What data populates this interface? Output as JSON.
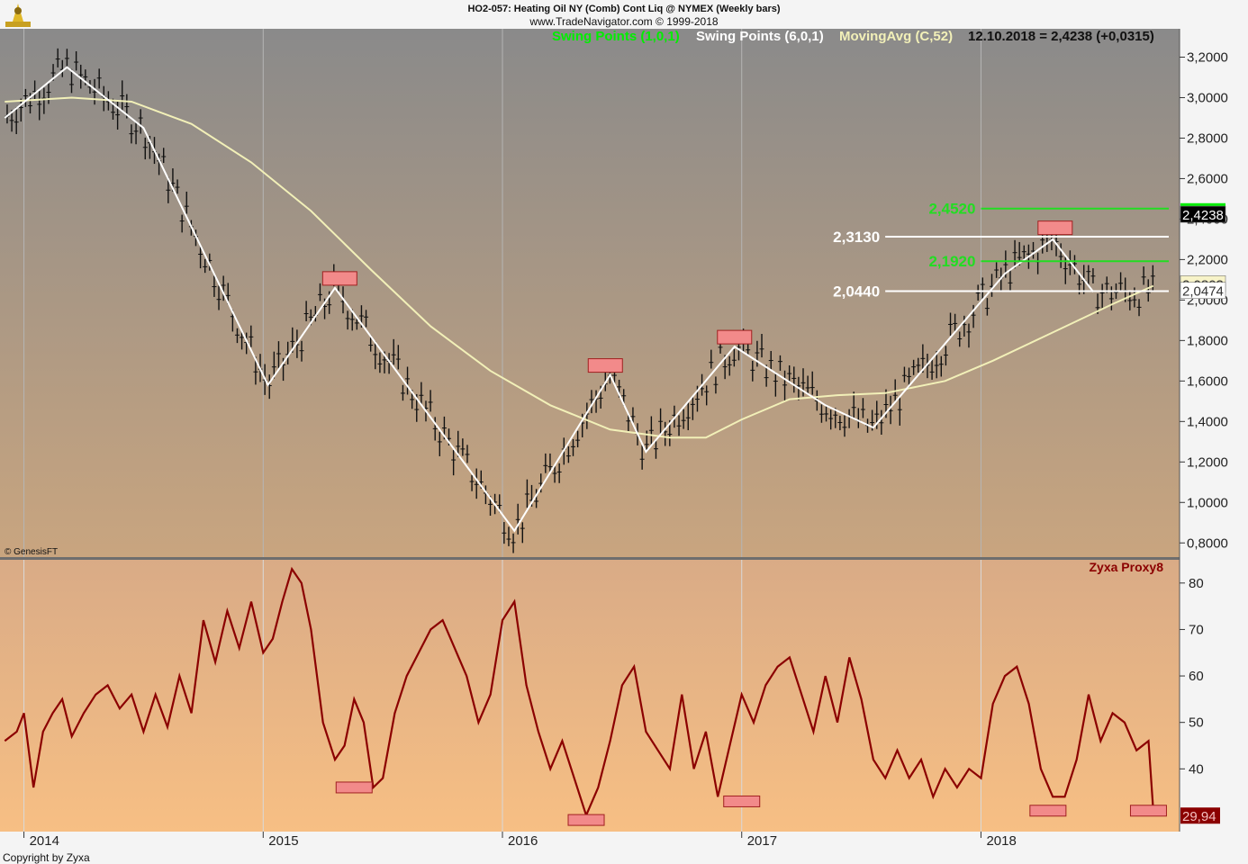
{
  "header": {
    "line1": "HO2-057:  Heating Oil NY (Comb) Cont Liq @ NYMEX  (Weekly bars)",
    "line2": "www.TradeNavigator.com © 1999-2018"
  },
  "legend": {
    "swing_small": "Swing Points (1,0,1)",
    "swing_large": "Swing Points (6,0,1)",
    "moving_avg": "MovingAvg (C,52)",
    "last_value": "12.10.2018 = 2,4238 (+0,0315)"
  },
  "watermark": "© GenesisFT",
  "footer": "Copyright by Zyxa",
  "colors": {
    "price_panel_top": "#8a8a8a",
    "price_panel_bottom": "#c9a57f",
    "indicator_panel_top": "#d9ab86",
    "indicator_panel_bottom": "#f7bf84",
    "small_swing": "#00ee00",
    "large_swing": "#ffffff",
    "moving_avg": "#f2f0b8",
    "indicator_line": "#8b0000",
    "marker_fill": "#f28a8a",
    "level_green": "#22dd22"
  },
  "chart_data": [
    {
      "type": "line",
      "panel": "price",
      "x_tick_labels": [
        "2014",
        "2015",
        "2016",
        "2017",
        "2018"
      ],
      "x_tick_values": [
        2014.0,
        2015.0,
        2016.0,
        2017.0,
        2018.0
      ],
      "y_tick_labels": [
        "3,2000",
        "3,0000",
        "2,8000",
        "2,6000",
        "2,4000",
        "2,2000",
        "2,0000",
        "1,8000",
        "1,6000",
        "1,4000",
        "1,2000",
        "1,0000",
        "0,8000"
      ],
      "y_tick_values": [
        3.2,
        3.0,
        2.8,
        2.6,
        2.4,
        2.2,
        2.0,
        1.8,
        1.6,
        1.4,
        1.2,
        1.0,
        0.8
      ],
      "xlim": [
        2013.9,
        2018.83
      ],
      "ylim": [
        0.73,
        3.34
      ],
      "series": [
        {
          "name": "Swing Points (6,0,1)",
          "x": [
            2013.92,
            2014.18,
            2014.5,
            2015.02,
            2015.3,
            2016.05,
            2016.45,
            2016.6,
            2016.97,
            2017.35,
            2017.55,
            2018.1,
            2018.3,
            2018.47
          ],
          "y": [
            2.9,
            3.15,
            2.85,
            1.58,
            2.06,
            0.86,
            1.63,
            1.25,
            1.77,
            1.48,
            1.37,
            2.13,
            2.3,
            2.04
          ]
        },
        {
          "name": "MovingAvg (C,52)",
          "x": [
            2013.92,
            2014.2,
            2014.45,
            2014.7,
            2014.95,
            2015.2,
            2015.45,
            2015.7,
            2015.95,
            2016.2,
            2016.45,
            2016.7,
            2016.85,
            2017.0,
            2017.2,
            2017.4,
            2017.6,
            2017.85,
            2018.05,
            2018.3,
            2018.55,
            2018.72
          ],
          "y": [
            2.98,
            3.0,
            2.98,
            2.87,
            2.68,
            2.44,
            2.15,
            1.87,
            1.65,
            1.48,
            1.36,
            1.32,
            1.32,
            1.41,
            1.51,
            1.53,
            1.54,
            1.6,
            1.7,
            1.84,
            1.98,
            2.07
          ]
        }
      ],
      "swing_markers": [
        {
          "x": 2015.32,
          "y": 2.06
        },
        {
          "x": 2016.43,
          "y": 1.63
        },
        {
          "x": 2016.97,
          "y": 1.77
        },
        {
          "x": 2018.31,
          "y": 2.31
        }
      ],
      "levels": [
        {
          "label": "2,4520",
          "value": 2.452,
          "style": "green",
          "from": 2018.0
        },
        {
          "label": "2,3130",
          "value": 2.313,
          "style": "white",
          "from": 2017.6
        },
        {
          "label": "2,1920",
          "value": 2.192,
          "style": "green",
          "from": 2018.0
        },
        {
          "label": "2,0440",
          "value": 2.044,
          "style": "white",
          "from": 2017.6
        }
      ],
      "value_flags": [
        {
          "label": "2,4238",
          "value": 2.4238,
          "style": "dark"
        },
        {
          "label": "2,0803",
          "value": 2.0803,
          "style": "cream"
        },
        {
          "label": "2,0474",
          "value": 2.0474,
          "style": "white"
        }
      ],
      "highlight_bar": {
        "value": 2.465
      }
    },
    {
      "type": "line",
      "panel": "indicator",
      "title": "Zyxa Proxy8",
      "y_tick_labels": [
        "80",
        "70",
        "60",
        "50",
        "40"
      ],
      "y_tick_values": [
        80,
        70,
        60,
        50,
        40
      ],
      "ylim": [
        26.5,
        85
      ],
      "series": [
        {
          "name": "Zyxa Proxy8",
          "x": [
            2013.92,
            2013.97,
            2014.0,
            2014.04,
            2014.08,
            2014.12,
            2014.16,
            2014.2,
            2014.25,
            2014.3,
            2014.35,
            2014.4,
            2014.45,
            2014.5,
            2014.55,
            2014.6,
            2014.65,
            2014.7,
            2014.75,
            2014.8,
            2014.85,
            2014.9,
            2014.95,
            2015.0,
            2015.04,
            2015.08,
            2015.12,
            2015.16,
            2015.2,
            2015.25,
            2015.3,
            2015.34,
            2015.38,
            2015.42,
            2015.46,
            2015.5,
            2015.55,
            2015.6,
            2015.65,
            2015.7,
            2015.75,
            2015.8,
            2015.85,
            2015.9,
            2015.95,
            2016.0,
            2016.05,
            2016.1,
            2016.15,
            2016.2,
            2016.25,
            2016.3,
            2016.35,
            2016.4,
            2016.45,
            2016.5,
            2016.55,
            2016.6,
            2016.65,
            2016.7,
            2016.75,
            2016.8,
            2016.85,
            2016.9,
            2016.95,
            2017.0,
            2017.05,
            2017.1,
            2017.15,
            2017.2,
            2017.25,
            2017.3,
            2017.35,
            2017.4,
            2017.45,
            2017.5,
            2017.55,
            2017.6,
            2017.65,
            2017.7,
            2017.75,
            2017.8,
            2017.85,
            2017.9,
            2017.95,
            2018.0,
            2018.05,
            2018.1,
            2018.15,
            2018.2,
            2018.25,
            2018.3,
            2018.35,
            2018.4,
            2018.45,
            2018.5,
            2018.55,
            2018.6,
            2018.65,
            2018.7,
            2018.72
          ],
          "y": [
            46,
            48,
            52,
            36,
            48,
            52,
            55,
            47,
            52,
            56,
            58,
            53,
            56,
            48,
            56,
            49,
            60,
            52,
            72,
            63,
            74,
            66,
            76,
            65,
            68,
            76,
            83,
            80,
            70,
            50,
            42,
            45,
            55,
            50,
            36,
            38,
            52,
            60,
            65,
            70,
            72,
            66,
            60,
            50,
            56,
            72,
            76,
            58,
            48,
            40,
            46,
            38,
            30,
            36,
            46,
            58,
            62,
            48,
            44,
            40,
            56,
            40,
            48,
            34,
            45,
            56,
            50,
            58,
            62,
            64,
            56,
            48,
            60,
            50,
            64,
            55,
            42,
            38,
            44,
            38,
            42,
            34,
            40,
            36,
            40,
            38,
            54,
            60,
            62,
            54,
            40,
            34,
            34,
            42,
            56,
            46,
            52,
            50,
            44,
            46,
            31
          ]
        }
      ],
      "markers": [
        {
          "x": 2015.38,
          "y": 36
        },
        {
          "x": 2016.35,
          "y": 29
        },
        {
          "x": 2017.0,
          "y": 33
        },
        {
          "x": 2018.28,
          "y": 31
        },
        {
          "x": 2018.7,
          "y": 31
        }
      ],
      "value_flag": {
        "label": "29,94",
        "value": 29.94
      }
    }
  ]
}
